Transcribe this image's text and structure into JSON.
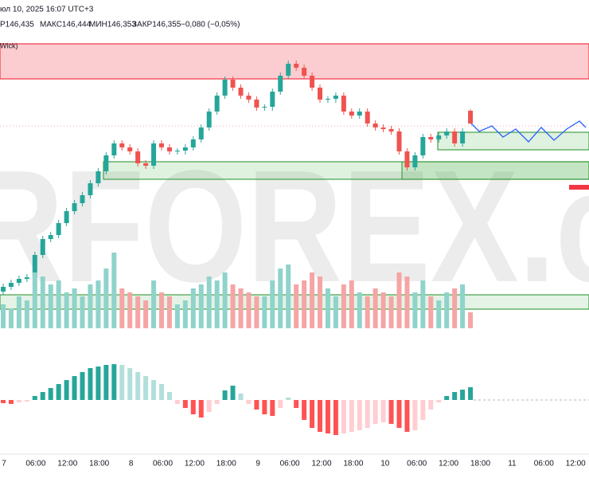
{
  "header": {
    "datetime": "юл 10, 2025 16:07 UTC+3",
    "open": "Р146,435",
    "high": "МАКС146,444",
    "low": "МИН146,353",
    "close": "ЗАКР146,355",
    "change": "−0,080 (−0,05%)",
    "zone_label": "Wick)"
  },
  "watermark": "RFOREX.c",
  "x_axis": {
    "labels": [
      "7",
      "06:00",
      "12:00",
      "18:00",
      "8",
      "06:00",
      "12:00",
      "18:00",
      "9",
      "06:00",
      "12:00",
      "18:00",
      "10",
      "06:00",
      "12:00",
      "18:00",
      "11",
      "06:00",
      "12:00"
    ]
  },
  "chart_data": [
    {
      "type": "candlestick",
      "up_color": "#26a69a",
      "down_color": "#ef5350",
      "ylim": [
        145.055,
        146.93
      ],
      "candles": [
        [
          145.3,
          145.35,
          145.28,
          145.33
        ],
        [
          145.33,
          145.375,
          145.31,
          145.355
        ],
        [
          145.355,
          145.4,
          145.335,
          145.38
        ],
        [
          145.38,
          145.41,
          145.36,
          145.39
        ],
        [
          145.39,
          145.55,
          145.37,
          145.53
        ],
        [
          145.53,
          145.65,
          145.51,
          145.63
        ],
        [
          145.63,
          145.675,
          145.61,
          145.655
        ],
        [
          145.655,
          145.75,
          145.635,
          145.73
        ],
        [
          145.73,
          145.825,
          145.71,
          145.805
        ],
        [
          145.805,
          145.875,
          145.785,
          145.855
        ],
        [
          145.855,
          145.925,
          145.835,
          145.905
        ],
        [
          145.905,
          146.0,
          145.885,
          145.98
        ],
        [
          145.98,
          146.075,
          145.96,
          146.055
        ],
        [
          146.055,
          146.175,
          146.035,
          146.155
        ],
        [
          146.155,
          146.25,
          146.135,
          146.23
        ],
        [
          146.23,
          146.25,
          146.185,
          146.205
        ],
        [
          146.205,
          146.225,
          146.16,
          146.18
        ],
        [
          146.18,
          146.2,
          146.085,
          146.105
        ],
        [
          146.105,
          146.125,
          146.07,
          146.09
        ],
        [
          146.09,
          146.25,
          146.07,
          146.23
        ],
        [
          146.23,
          146.25,
          146.185,
          146.205
        ],
        [
          146.205,
          146.225,
          146.16,
          146.18
        ],
        [
          146.18,
          146.2,
          146.16,
          146.185
        ],
        [
          146.185,
          146.225,
          146.16,
          146.205
        ],
        [
          146.205,
          146.275,
          146.185,
          146.255
        ],
        [
          146.255,
          146.35,
          146.235,
          146.33
        ],
        [
          146.33,
          146.45,
          146.31,
          146.43
        ],
        [
          146.43,
          146.55,
          146.41,
          146.53
        ],
        [
          146.53,
          146.65,
          146.51,
          146.63
        ],
        [
          146.63,
          146.65,
          146.56,
          146.58
        ],
        [
          146.58,
          146.6,
          146.51,
          146.53
        ],
        [
          146.53,
          146.55,
          146.485,
          146.505
        ],
        [
          146.505,
          146.525,
          146.435,
          146.455
        ],
        [
          146.455,
          146.475,
          146.435,
          146.46
        ],
        [
          146.46,
          146.575,
          146.435,
          146.555
        ],
        [
          146.555,
          146.675,
          146.535,
          146.655
        ],
        [
          146.655,
          146.75,
          146.635,
          146.73
        ],
        [
          146.73,
          146.75,
          146.685,
          146.705
        ],
        [
          146.705,
          146.725,
          146.635,
          146.655
        ],
        [
          146.655,
          146.675,
          146.56,
          146.58
        ],
        [
          146.58,
          146.6,
          146.485,
          146.505
        ],
        [
          146.505,
          146.525,
          146.485,
          146.51
        ],
        [
          146.51,
          146.55,
          146.485,
          146.53
        ],
        [
          146.53,
          146.55,
          146.41,
          146.43
        ],
        [
          146.43,
          146.45,
          146.385,
          146.405
        ],
        [
          146.405,
          146.45,
          146.385,
          146.43
        ],
        [
          146.43,
          146.45,
          146.335,
          146.355
        ],
        [
          146.355,
          146.375,
          146.31,
          146.33
        ],
        [
          146.33,
          146.35,
          146.3,
          146.32
        ],
        [
          146.32,
          146.34,
          146.285,
          146.305
        ],
        [
          146.305,
          146.325,
          146.16,
          146.18
        ],
        [
          146.18,
          146.2,
          146.06,
          146.08
        ],
        [
          146.08,
          146.175,
          146.06,
          146.155
        ],
        [
          146.155,
          146.29,
          146.135,
          146.27
        ],
        [
          146.27,
          146.29,
          146.235,
          146.255
        ],
        [
          146.255,
          146.3,
          146.235,
          146.28
        ],
        [
          146.28,
          146.325,
          146.26,
          146.305
        ],
        [
          146.305,
          146.325,
          146.21,
          146.23
        ],
        [
          146.23,
          146.325,
          146.21,
          146.305
        ],
        [
          146.435,
          146.444,
          146.353,
          146.355
        ]
      ]
    },
    {
      "type": "volume",
      "up_color": "#8fd3cb",
      "down_color": "#f5a5a5",
      "ylim": [
        0,
        100
      ],
      "values": [
        30,
        25,
        40,
        35,
        70,
        65,
        55,
        60,
        45,
        50,
        40,
        55,
        60,
        75,
        95,
        50,
        45,
        40,
        35,
        60,
        45,
        40,
        30,
        35,
        50,
        55,
        65,
        60,
        70,
        55,
        50,
        45,
        40,
        40,
        60,
        75,
        80,
        55,
        60,
        70,
        65,
        50,
        40,
        55,
        60,
        45,
        40,
        50,
        45,
        40,
        70,
        65,
        45,
        60,
        40,
        35,
        45,
        50,
        55,
        20
      ]
    },
    {
      "type": "histogram",
      "ylim": [
        -50,
        50
      ],
      "values": [
        -4,
        -5,
        -3,
        -2,
        5,
        10,
        15,
        20,
        25,
        30,
        35,
        40,
        42,
        44,
        45,
        44,
        40,
        35,
        30,
        25,
        20,
        10,
        -5,
        -10,
        -18,
        -22,
        -15,
        -5,
        12,
        18,
        8,
        -5,
        -12,
        -18,
        -20,
        -10,
        3,
        -10,
        -25,
        -35,
        -40,
        -42,
        -44,
        -42,
        -40,
        -38,
        -35,
        -30,
        -28,
        -30,
        -35,
        -40,
        -38,
        -25,
        -12,
        -3,
        5,
        10,
        13,
        16
      ]
    }
  ]
}
